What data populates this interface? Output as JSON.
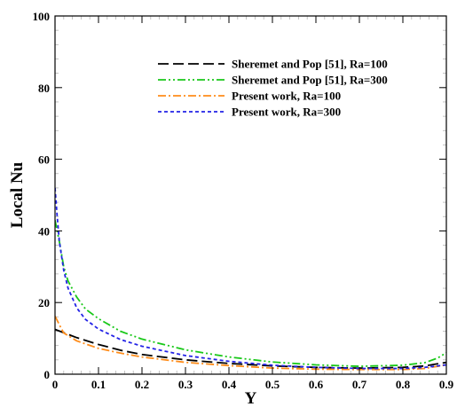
{
  "chart_data": {
    "type": "line",
    "title": "",
    "xlabel": "Y",
    "ylabel": "Local Nu",
    "xlim": [
      0,
      0.9
    ],
    "ylim": [
      0,
      100
    ],
    "xticks": [
      "0",
      "0.1",
      "0.2",
      "0.3",
      "0.4",
      "0.5",
      "0.6",
      "0.7",
      "0.8",
      "0.9"
    ],
    "yticks": [
      "0",
      "20",
      "40",
      "60",
      "80",
      "100"
    ],
    "grid": false,
    "legend_position": "top-right",
    "series": [
      {
        "name": "Sheremet and Pop [51], Ra=100",
        "color": "#000000",
        "dash": "long-dash",
        "x": [
          0,
          0.05,
          0.1,
          0.15,
          0.2,
          0.3,
          0.4,
          0.5,
          0.6,
          0.7,
          0.8,
          0.85,
          0.9
        ],
        "y": [
          12.5,
          10.2,
          8.3,
          6.7,
          5.5,
          4.0,
          3.0,
          2.3,
          1.9,
          1.7,
          1.9,
          2.3,
          3.3
        ]
      },
      {
        "name": "Sheremet and Pop [51], Ra=300",
        "color": "#19c819",
        "dash": "dash-dot-dot",
        "x": [
          0,
          0.005,
          0.01,
          0.02,
          0.03,
          0.05,
          0.07,
          0.1,
          0.15,
          0.2,
          0.3,
          0.4,
          0.5,
          0.6,
          0.7,
          0.8,
          0.85,
          0.88,
          0.9
        ],
        "y": [
          43,
          40,
          37,
          30,
          26,
          21.5,
          18.2,
          15.5,
          12.0,
          9.8,
          6.8,
          4.8,
          3.4,
          2.6,
          2.2,
          2.5,
          3.2,
          4.5,
          6.0
        ]
      },
      {
        "name": "Present work, Ra=100",
        "color": "#ff8c1a",
        "dash": "dash-dot",
        "x": [
          0,
          0.005,
          0.01,
          0.02,
          0.05,
          0.1,
          0.15,
          0.2,
          0.3,
          0.4,
          0.5,
          0.6,
          0.7,
          0.8,
          0.85,
          0.9
        ],
        "y": [
          16.2,
          15.0,
          13.8,
          11.5,
          9.3,
          7.2,
          5.9,
          4.8,
          3.3,
          2.4,
          1.7,
          1.4,
          1.3,
          1.3,
          1.6,
          2.6
        ]
      },
      {
        "name": "Present work, Ra=300",
        "color": "#2323e6",
        "dash": "short-dash",
        "x": [
          0,
          0.005,
          0.01,
          0.02,
          0.03,
          0.05,
          0.07,
          0.1,
          0.15,
          0.2,
          0.3,
          0.4,
          0.5,
          0.6,
          0.7,
          0.8,
          0.85,
          0.9
        ],
        "y": [
          52,
          44,
          37,
          29,
          24,
          18.5,
          15.3,
          12.6,
          9.7,
          7.8,
          5.2,
          3.6,
          2.5,
          1.9,
          1.6,
          1.6,
          1.9,
          2.6
        ]
      }
    ]
  }
}
